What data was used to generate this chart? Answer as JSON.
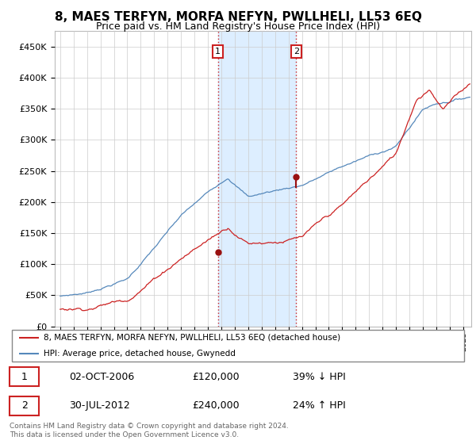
{
  "title": "8, MAES TERFYN, MORFA NEFYN, PWLLHELI, LL53 6EQ",
  "subtitle": "Price paid vs. HM Land Registry's House Price Index (HPI)",
  "legend_line1": "8, MAES TERFYN, MORFA NEFYN, PWLLHELI, LL53 6EQ (detached house)",
  "legend_line2": "HPI: Average price, detached house, Gwynedd",
  "transaction1_date": "02-OCT-2006",
  "transaction1_price": "£120,000",
  "transaction1_hpi": "39% ↓ HPI",
  "transaction2_date": "30-JUL-2012",
  "transaction2_price": "£240,000",
  "transaction2_hpi": "24% ↑ HPI",
  "footer": "Contains HM Land Registry data © Crown copyright and database right 2024.\nThis data is licensed under the Open Government Licence v3.0.",
  "hpi_color": "#5588bb",
  "price_color": "#cc2222",
  "marker_color": "#991111",
  "shading_color": "#ddeeff",
  "vline_color": "#cc2222",
  "ylim": [
    0,
    475000
  ],
  "yticks": [
    0,
    50000,
    100000,
    150000,
    200000,
    250000,
    300000,
    350000,
    400000,
    450000
  ],
  "ytick_labels": [
    "£0",
    "£50K",
    "£100K",
    "£150K",
    "£200K",
    "£250K",
    "£300K",
    "£350K",
    "£400K",
    "£450K"
  ],
  "title_fontsize": 11,
  "subtitle_fontsize": 9,
  "t1_year": 2006.75,
  "t2_year": 2012.58,
  "t1_price": 120000,
  "t2_price": 240000
}
